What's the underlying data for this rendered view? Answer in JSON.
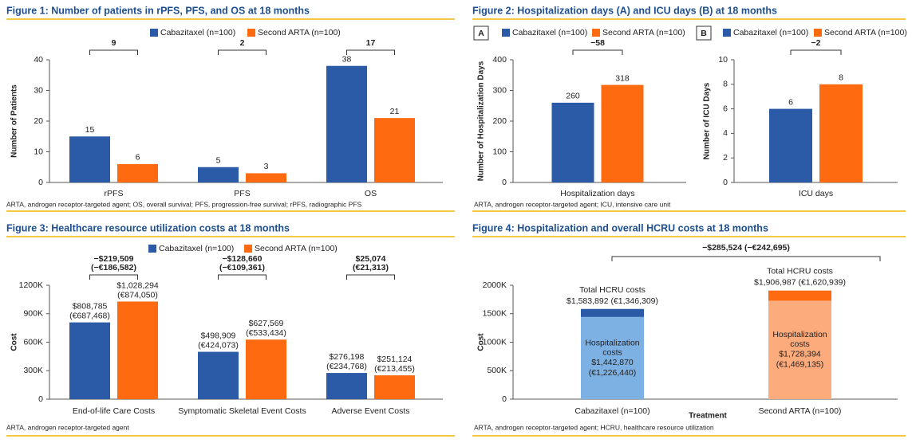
{
  "chart_data": [
    {
      "type": "bar",
      "title": "Figure 1: Number of patients in rPFS, PFS, and OS at 18 months",
      "categories": [
        "rPFS",
        "PFS",
        "OS"
      ],
      "series": [
        {
          "name": "Cabazitaxel (n=100)",
          "color": "#2b5aa6",
          "values": [
            15,
            5,
            38
          ]
        },
        {
          "name": "Second ARTA (n=100)",
          "color": "#fd6a0f",
          "values": [
            6,
            3,
            21
          ]
        }
      ],
      "ylabel": "Number of Patients",
      "ylim": [
        0,
        40
      ],
      "yticks": [
        0,
        10,
        20,
        30,
        40
      ],
      "annotations": [
        "9",
        "2",
        "17"
      ],
      "footnote": "ARTA, androgen receptor-targeted agent; OS, overall survival; PFS, progression-free survival; rPFS, radiographic PFS"
    },
    {
      "type": "bar",
      "title": "Figure 2: Hospitalization days (A) and ICU days (B) at 18 months",
      "panel": "A",
      "categories": [
        "Hospitalization days"
      ],
      "series": [
        {
          "name": "Cabazitaxel (n=100)",
          "color": "#2b5aa6",
          "values": [
            260
          ]
        },
        {
          "name": "Second ARTA (n=100)",
          "color": "#fd6a0f",
          "values": [
            318
          ]
        }
      ],
      "ylabel": "Number of Hospitalization Days",
      "ylim": [
        0,
        400
      ],
      "yticks": [
        0,
        100,
        200,
        300,
        400
      ],
      "annotations": [
        "−58"
      ],
      "footnote": "ARTA, androgen receptor-targeted agent; ICU, intensive care unit"
    },
    {
      "type": "bar",
      "panel": "B",
      "categories": [
        "ICU days"
      ],
      "series": [
        {
          "name": "Cabazitaxel (n=100)",
          "color": "#2b5aa6",
          "values": [
            6
          ]
        },
        {
          "name": "Second ARTA (n=100)",
          "color": "#fd6a0f",
          "values": [
            8
          ]
        }
      ],
      "ylabel": "Number of ICU Days",
      "ylim": [
        0,
        10
      ],
      "yticks": [
        0,
        2,
        4,
        6,
        8,
        10
      ],
      "annotations": [
        "−2"
      ]
    },
    {
      "type": "bar",
      "title": "Figure 3: Healthcare resource utilization costs at 18 months",
      "categories": [
        "End-of-life Care Costs",
        "Symptomatic Skeletal Event Costs",
        "Adverse Event Costs"
      ],
      "series": [
        {
          "name": "Cabazitaxel (n=100)",
          "color": "#2b5aa6",
          "values": [
            808785,
            498909,
            276198
          ],
          "value_labels": [
            "$808,785\n(€687,468)",
            "$498,909\n(€424,073)",
            "$276,198\n(€234,768)"
          ]
        },
        {
          "name": "Second ARTA (n=100)",
          "color": "#fd6a0f",
          "values": [
            1028294,
            627569,
            251124
          ],
          "value_labels": [
            "$1,028,294\n(€874,050)",
            "$627,569\n(€533,434)",
            "$251,124\n(€213,455)"
          ]
        }
      ],
      "ylabel": "Cost",
      "ylim": [
        0,
        1200000
      ],
      "yticks": [
        0,
        {
          "value": 300000,
          "label": "300K"
        },
        {
          "value": 600000,
          "label": "600K"
        },
        {
          "value": 900000,
          "label": "900K"
        },
        {
          "value": 1200000,
          "label": "1200K"
        }
      ],
      "annotations": [
        "−$219,509\n(−€186,582)",
        "−$128,660\n(−€109,361)",
        "$25,074\n(€21,313)"
      ],
      "footnote": "ARTA, androgen receptor-targeted agent"
    },
    {
      "type": "stacked_bar",
      "title": "Figure 4: Hospitalization and overall HCRU costs at 18 months",
      "categories": [
        "Cabazitaxel (n=100)",
        "Second ARTA (n=100)"
      ],
      "series": [
        {
          "name": "Hospitalization\ncosts",
          "colors": [
            "#7eb1e3",
            "#fcab7c"
          ],
          "values": [
            1442870,
            1728394
          ],
          "value_labels": [
            "$1,442,870\n(€1,226,440)",
            "$1,728,394\n(€1,469,135)"
          ]
        },
        {
          "colors": [
            "#2b5aa6",
            "#fd6a0f"
          ],
          "values": [
            141022,
            178593
          ]
        }
      ],
      "total_labels": [
        "Total HCRU costs\n$1,583,892 (€1,346,309)",
        "Total HCRU costs\n$1,906,987 (€1,620,939)"
      ],
      "xlabel": "Treatment",
      "ylabel": "Cost",
      "ylim": [
        0,
        2000000
      ],
      "yticks": [
        0,
        {
          "value": 500000,
          "label": "500K"
        },
        {
          "value": 1000000,
          "label": "1000K"
        },
        {
          "value": 1500000,
          "label": "1500K"
        },
        {
          "value": 2000000,
          "label": "2000K"
        }
      ],
      "annotations": [
        "−$285,524 (−€242,695)"
      ],
      "footnote": "ARTA, androgen receptor-targeted agent; HCRU, healthcare resource utilization"
    }
  ]
}
